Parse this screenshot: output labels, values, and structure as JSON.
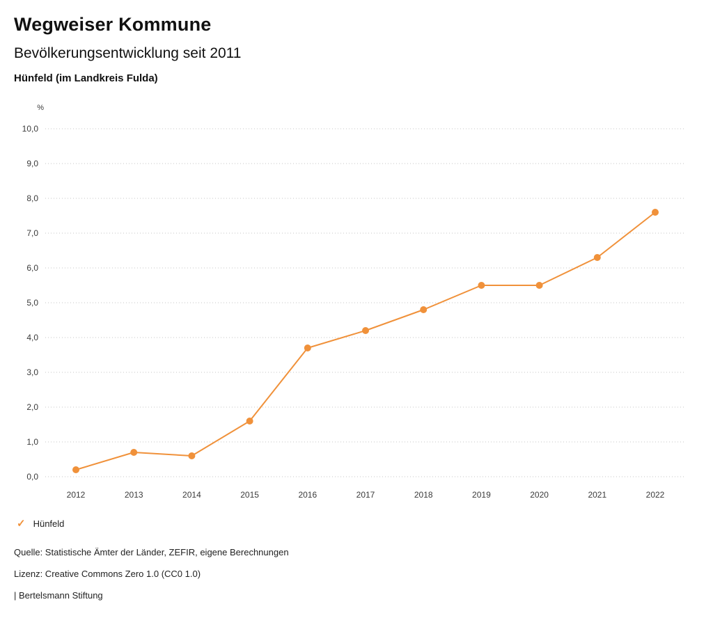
{
  "header": {
    "title": "Wegweiser Kommune",
    "subtitle": "Bevölkerungsentwicklung seit 2011",
    "region": "Hünfeld (im Landkreis Fulda)"
  },
  "chart_data": {
    "type": "line",
    "title": "Bevölkerungsentwicklung seit 2011",
    "unit_label": "%",
    "categories": [
      "2012",
      "2013",
      "2014",
      "2015",
      "2016",
      "2017",
      "2018",
      "2019",
      "2020",
      "2021",
      "2022"
    ],
    "series": [
      {
        "name": "Hünfeld",
        "color": "#f0913a",
        "values": [
          0.2,
          0.7,
          0.6,
          1.6,
          3.7,
          4.2,
          4.8,
          5.5,
          5.5,
          6.3,
          7.6
        ]
      }
    ],
    "ylim": [
      0,
      10
    ],
    "ytick_step": 1,
    "ytick_format": "german-decimal-comma-one-digit",
    "grid": "dotted-horizontal",
    "legend_position": "bottom-left"
  },
  "legend": {
    "items": [
      {
        "label": "Hünfeld",
        "color": "#f0913a",
        "icon": "check-icon"
      }
    ]
  },
  "footer": {
    "source": "Quelle: Statistische Ämter der Länder, ZEFIR, eigene Berechnungen",
    "license": "Lizenz: Creative Commons Zero 1.0 (CC0 1.0)",
    "attribution": "| Bertelsmann Stiftung"
  }
}
